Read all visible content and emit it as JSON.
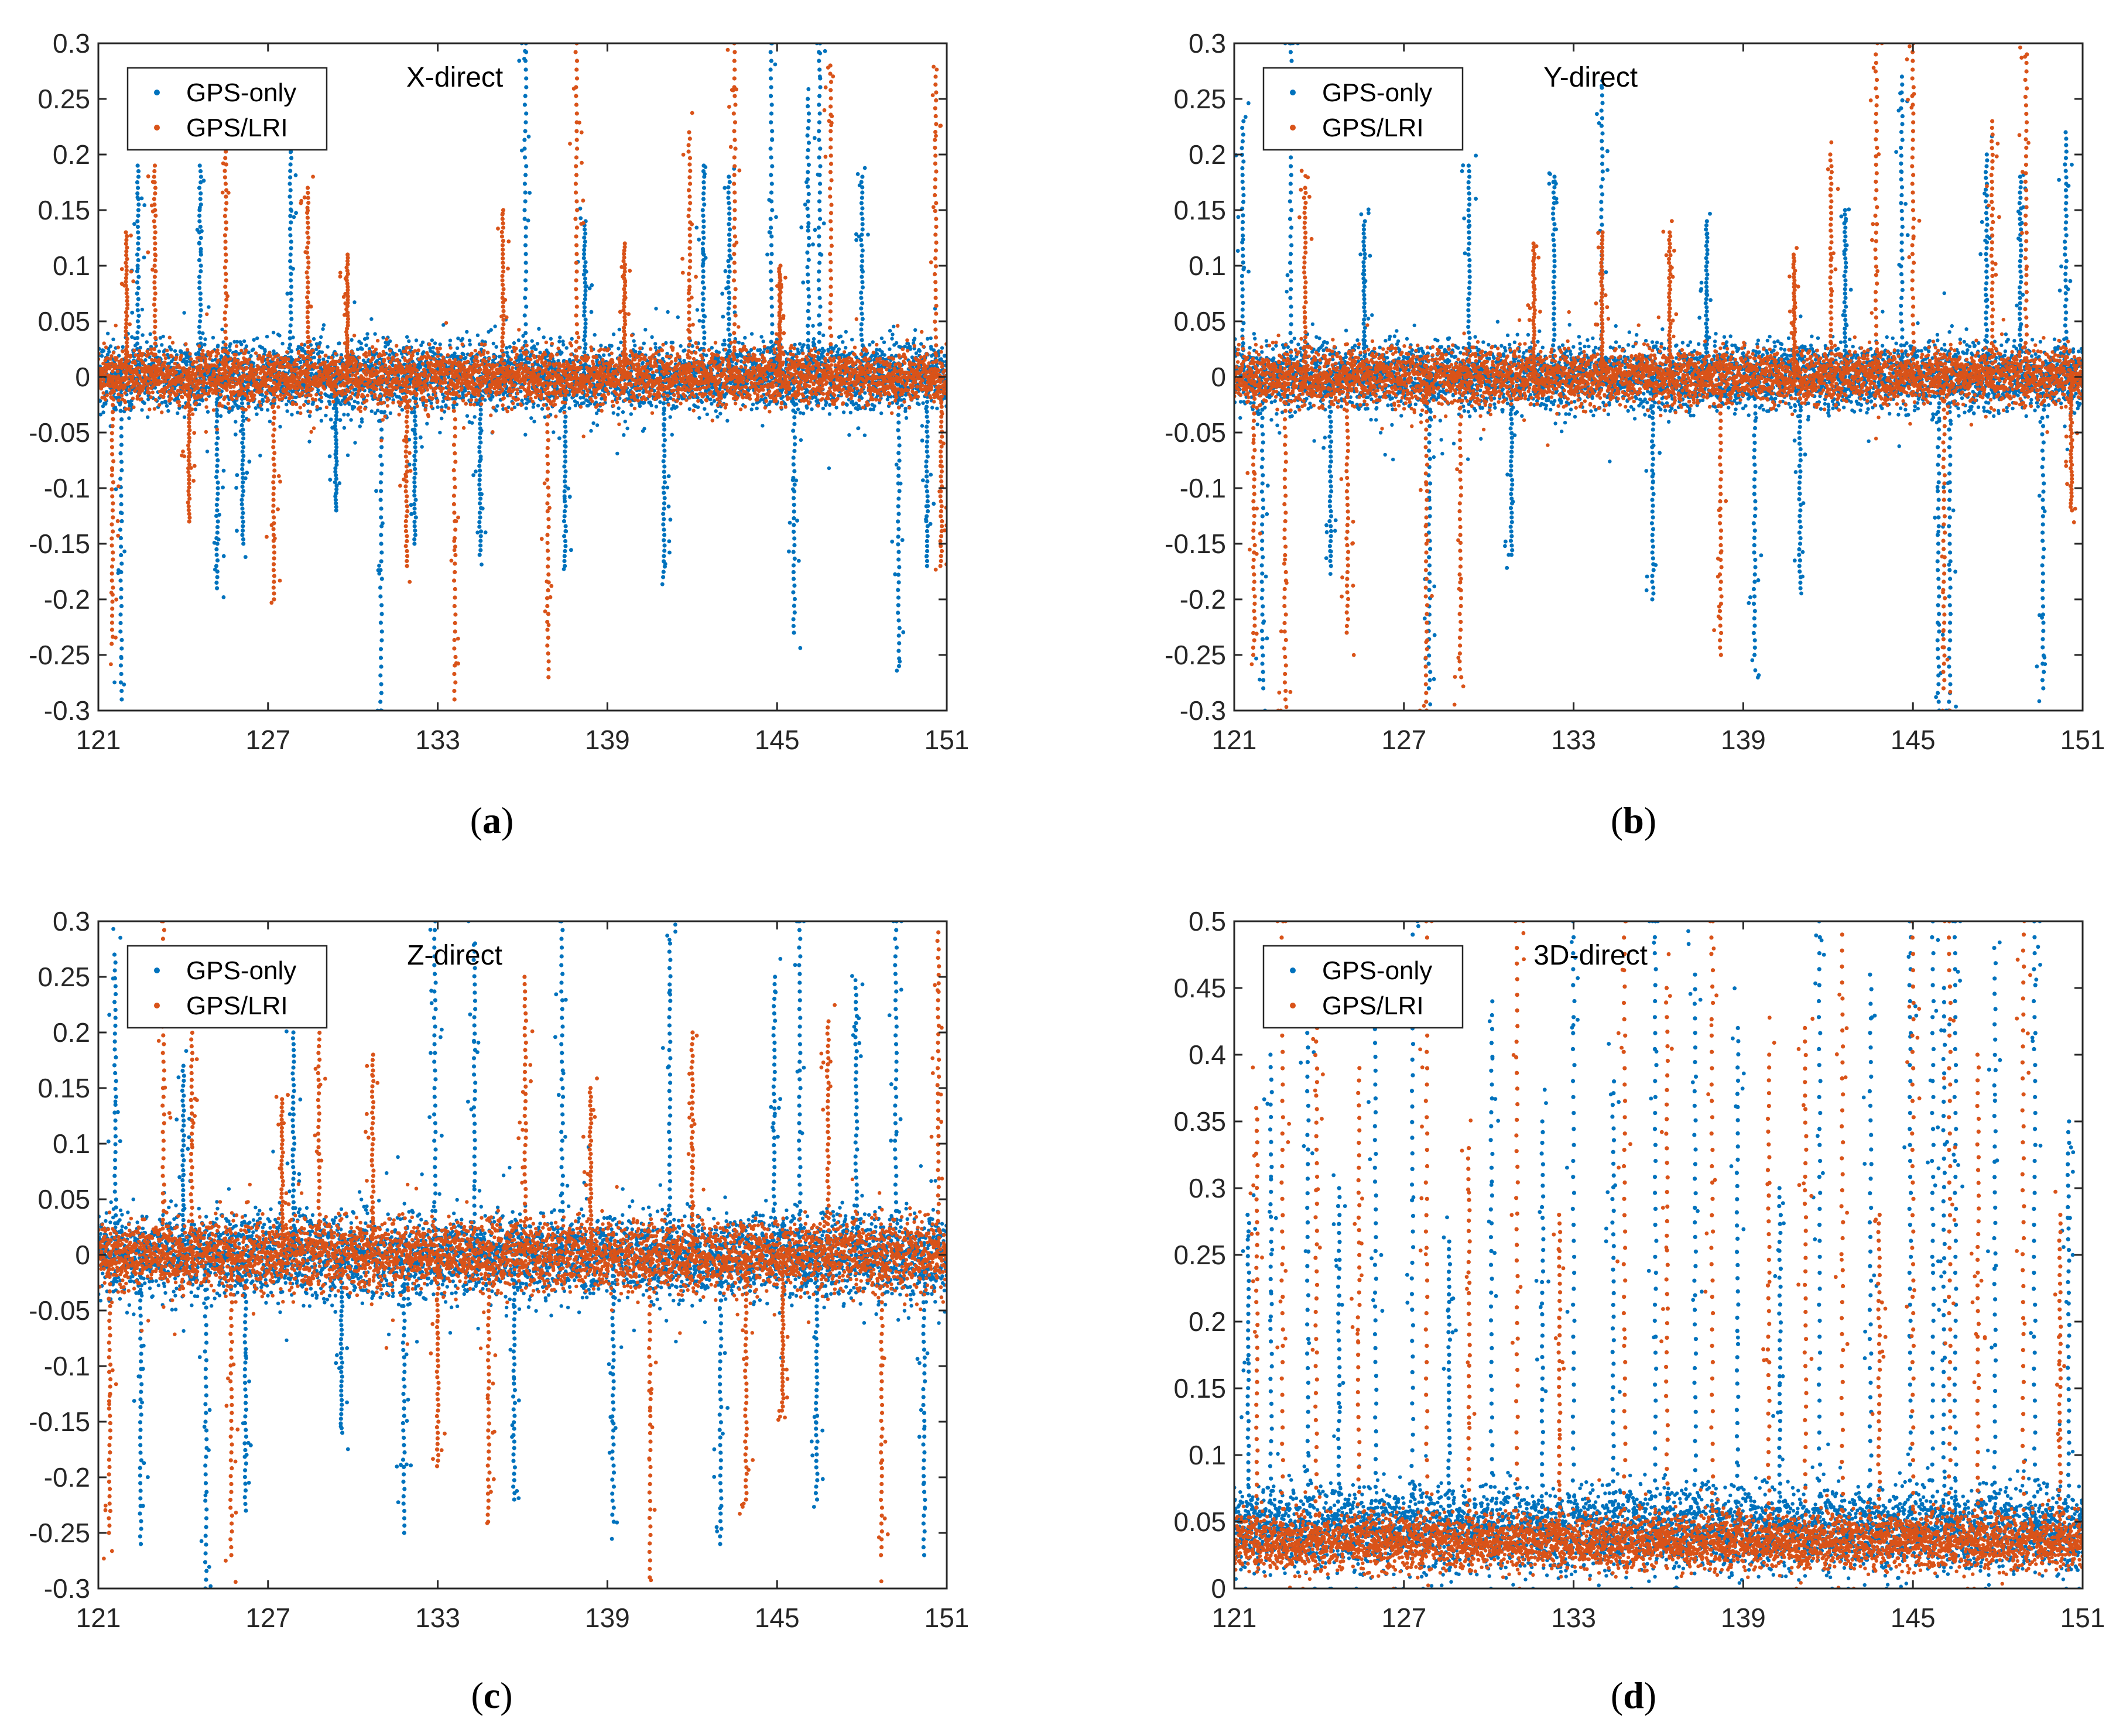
{
  "colors": {
    "gps_only": "#0072BD",
    "gps_lri": "#D95319"
  },
  "chart_data": [
    {
      "panel": "a",
      "caption_label": "a",
      "type": "scatter",
      "title": "X-direct",
      "xlabel": "",
      "ylabel": "",
      "xlim": [
        121,
        151
      ],
      "ylim": [
        -0.3,
        0.3
      ],
      "xticks": [
        121,
        127,
        133,
        139,
        145,
        151
      ],
      "xtick_labels": [
        "121",
        "127",
        "133",
        "139",
        "145",
        "151"
      ],
      "yticks": [
        -0.3,
        -0.25,
        -0.2,
        -0.15,
        -0.1,
        -0.05,
        0,
        0.05,
        0.1,
        0.15,
        0.2,
        0.25,
        0.3
      ],
      "ytick_labels": [
        "-0.3",
        "-0.25",
        "-0.2",
        "-0.15",
        "-0.1",
        "-0.05",
        "0",
        "0.05",
        "0.1",
        "0.15",
        "0.2",
        "0.25",
        "0.3"
      ],
      "legend": {
        "placement": "top-left",
        "entries": [
          "GPS-only",
          "GPS/LRI"
        ]
      },
      "series": [
        {
          "name": "GPS-only",
          "center": 0,
          "band": 0.045,
          "spikes": [
            [
              121.8,
              -0.29
            ],
            [
              122.4,
              0.19
            ],
            [
              124.6,
              0.19
            ],
            [
              125.2,
              -0.19
            ],
            [
              126.1,
              -0.15
            ],
            [
              127.8,
              0.22
            ],
            [
              129.4,
              -0.12
            ],
            [
              131.0,
              -0.3
            ],
            [
              132.2,
              -0.15
            ],
            [
              134.5,
              -0.16
            ],
            [
              136.1,
              0.3
            ],
            [
              137.5,
              -0.17
            ],
            [
              138.2,
              0.14
            ],
            [
              141.0,
              -0.18
            ],
            [
              142.4,
              0.19
            ],
            [
              143.3,
              0.18
            ],
            [
              144.8,
              0.3
            ],
            [
              145.6,
              -0.23
            ],
            [
              146.1,
              0.25
            ],
            [
              146.5,
              0.3
            ],
            [
              148.0,
              0.18
            ],
            [
              149.3,
              -0.26
            ],
            [
              150.3,
              -0.17
            ]
          ]
        },
        {
          "name": "GPS/LRI",
          "center": 0,
          "band": 0.035,
          "spikes": [
            [
              121.5,
              -0.24
            ],
            [
              122.0,
              0.13
            ],
            [
              123.0,
              0.19
            ],
            [
              124.2,
              -0.13
            ],
            [
              125.5,
              0.22
            ],
            [
              127.2,
              -0.2
            ],
            [
              128.4,
              0.17
            ],
            [
              129.8,
              0.11
            ],
            [
              131.9,
              -0.17
            ],
            [
              133.6,
              -0.29
            ],
            [
              135.3,
              0.15
            ],
            [
              136.9,
              -0.27
            ],
            [
              137.9,
              0.3
            ],
            [
              139.6,
              0.12
            ],
            [
              141.9,
              0.22
            ],
            [
              143.5,
              0.3
            ],
            [
              145.1,
              0.1
            ],
            [
              146.9,
              0.28
            ],
            [
              150.6,
              0.27
            ],
            [
              150.8,
              -0.17
            ]
          ]
        }
      ]
    },
    {
      "panel": "b",
      "caption_label": "b",
      "type": "scatter",
      "title": "Y-direct",
      "xlabel": "",
      "ylabel": "",
      "xlim": [
        121,
        151
      ],
      "ylim": [
        -0.3,
        0.3
      ],
      "xticks": [
        121,
        127,
        133,
        139,
        145,
        151
      ],
      "xtick_labels": [
        "121",
        "127",
        "133",
        "139",
        "145",
        "151"
      ],
      "yticks": [
        -0.3,
        -0.25,
        -0.2,
        -0.15,
        -0.1,
        -0.05,
        0,
        0.05,
        0.1,
        0.15,
        0.2,
        0.25,
        0.3
      ],
      "ytick_labels": [
        "-0.3",
        "-0.25",
        "-0.2",
        "-0.15",
        "-0.1",
        "-0.05",
        "0",
        "0.05",
        "0.1",
        "0.15",
        "0.2",
        "0.25",
        "0.3"
      ],
      "legend": {
        "placement": "top-left",
        "entries": [
          "GPS-only",
          "GPS/LRI"
        ]
      },
      "series": [
        {
          "name": "GPS-only",
          "center": 0,
          "band": 0.045,
          "spikes": [
            [
              121.3,
              0.23
            ],
            [
              122.0,
              -0.28
            ],
            [
              123.0,
              0.3
            ],
            [
              124.4,
              -0.17
            ],
            [
              125.6,
              0.14
            ],
            [
              127.9,
              -0.28
            ],
            [
              129.3,
              0.19
            ],
            [
              130.8,
              -0.16
            ],
            [
              132.3,
              0.18
            ],
            [
              134.0,
              0.26
            ],
            [
              135.8,
              -0.2
            ],
            [
              137.7,
              0.14
            ],
            [
              139.4,
              -0.25
            ],
            [
              141.0,
              -0.19
            ],
            [
              142.6,
              0.15
            ],
            [
              144.6,
              0.27
            ],
            [
              145.9,
              -0.3
            ],
            [
              146.3,
              -0.3
            ],
            [
              147.6,
              0.2
            ],
            [
              148.8,
              0.18
            ],
            [
              149.6,
              -0.28
            ],
            [
              150.4,
              0.22
            ]
          ]
        },
        {
          "name": "GPS/LRI",
          "center": 0,
          "band": 0.035,
          "spikes": [
            [
              121.7,
              -0.25
            ],
            [
              122.8,
              -0.29
            ],
            [
              123.5,
              0.17
            ],
            [
              125.0,
              -0.23
            ],
            [
              127.8,
              -0.3
            ],
            [
              129.0,
              -0.27
            ],
            [
              131.6,
              0.12
            ],
            [
              134.0,
              0.13
            ],
            [
              136.4,
              0.13
            ],
            [
              138.2,
              -0.25
            ],
            [
              140.8,
              0.11
            ],
            [
              142.1,
              0.2
            ],
            [
              143.7,
              0.29
            ],
            [
              145.0,
              0.3
            ],
            [
              146.1,
              -0.28
            ],
            [
              147.8,
              0.23
            ],
            [
              149.0,
              0.29
            ],
            [
              150.6,
              -0.12
            ]
          ]
        }
      ]
    },
    {
      "panel": "c",
      "caption_label": "c",
      "type": "scatter",
      "title": "Z-direct",
      "xlabel": "",
      "ylabel": "",
      "xlim": [
        121,
        151
      ],
      "ylim": [
        -0.3,
        0.3
      ],
      "xticks": [
        121,
        127,
        133,
        139,
        145,
        151
      ],
      "xtick_labels": [
        "121",
        "127",
        "133",
        "139",
        "145",
        "151"
      ],
      "yticks": [
        -0.3,
        -0.25,
        -0.2,
        -0.15,
        -0.1,
        -0.05,
        0,
        0.05,
        0.1,
        0.15,
        0.2,
        0.25,
        0.3
      ],
      "ytick_labels": [
        "-0.3",
        "-0.25",
        "-0.2",
        "-0.15",
        "-0.1",
        "-0.05",
        "0",
        "0.05",
        "0.1",
        "0.15",
        "0.2",
        "0.25",
        "0.3"
      ],
      "legend": {
        "placement": "top-left",
        "entries": [
          "GPS-only",
          "GPS/LRI"
        ]
      },
      "series": [
        {
          "name": "GPS-only",
          "center": 0,
          "band": 0.055,
          "spikes": [
            [
              121.6,
              0.27
            ],
            [
              122.5,
              -0.26
            ],
            [
              124.0,
              0.17
            ],
            [
              124.8,
              -0.3
            ],
            [
              126.2,
              -0.23
            ],
            [
              127.9,
              0.2
            ],
            [
              129.6,
              -0.16
            ],
            [
              131.8,
              -0.25
            ],
            [
              132.9,
              0.3
            ],
            [
              134.3,
              0.28
            ],
            [
              135.7,
              -0.22
            ],
            [
              137.4,
              0.3
            ],
            [
              139.2,
              -0.24
            ],
            [
              141.2,
              0.28
            ],
            [
              143.0,
              -0.26
            ],
            [
              144.9,
              0.25
            ],
            [
              145.8,
              0.3
            ],
            [
              146.4,
              -0.22
            ],
            [
              147.8,
              0.24
            ],
            [
              149.2,
              0.3
            ],
            [
              150.2,
              -0.27
            ]
          ]
        },
        {
          "name": "GPS/LRI",
          "center": 0,
          "band": 0.045,
          "spikes": [
            [
              121.4,
              -0.25
            ],
            [
              123.3,
              0.3
            ],
            [
              124.3,
              0.23
            ],
            [
              125.7,
              -0.27
            ],
            [
              127.5,
              0.14
            ],
            [
              128.8,
              0.23
            ],
            [
              130.7,
              0.18
            ],
            [
              133.0,
              -0.19
            ],
            [
              134.8,
              -0.24
            ],
            [
              136.1,
              0.25
            ],
            [
              138.4,
              0.15
            ],
            [
              140.5,
              -0.29
            ],
            [
              142.0,
              0.2
            ],
            [
              143.9,
              -0.22
            ],
            [
              145.2,
              -0.14
            ],
            [
              146.8,
              0.21
            ],
            [
              148.7,
              -0.27
            ],
            [
              150.7,
              0.29
            ]
          ]
        }
      ]
    },
    {
      "panel": "d",
      "caption_label": "d",
      "type": "scatter",
      "title": "3D-direct",
      "xlabel": "",
      "ylabel": "",
      "xlim": [
        121,
        151
      ],
      "ylim": [
        0,
        0.5
      ],
      "xticks": [
        121,
        127,
        133,
        139,
        145,
        151
      ],
      "xtick_labels": [
        "121",
        "127",
        "133",
        "139",
        "145",
        "151"
      ],
      "yticks": [
        0,
        0.05,
        0.1,
        0.15,
        0.2,
        0.25,
        0.3,
        0.35,
        0.4,
        0.45,
        0.5
      ],
      "ytick_labels": [
        "0",
        "0.05",
        "0.1",
        "0.15",
        "0.2",
        "0.25",
        "0.3",
        "0.35",
        "0.4",
        "0.45",
        "0.5"
      ],
      "legend": {
        "placement": "top-left",
        "entries": [
          "GPS-only",
          "GPS/LRI"
        ]
      },
      "series": [
        {
          "name": "GPS-only",
          "center": 0.045,
          "band": 0.045,
          "spikes": [
            [
              121.5,
              0.28
            ],
            [
              122.3,
              0.4
            ],
            [
              123.6,
              0.46
            ],
            [
              124.7,
              0.3
            ],
            [
              126.0,
              0.44
            ],
            [
              127.3,
              0.49
            ],
            [
              128.6,
              0.26
            ],
            [
              130.1,
              0.44
            ],
            [
              131.9,
              0.35
            ],
            [
              133.0,
              0.5
            ],
            [
              134.4,
              0.38
            ],
            [
              135.9,
              0.5
            ],
            [
              137.3,
              0.46
            ],
            [
              138.8,
              0.42
            ],
            [
              140.3,
              0.3
            ],
            [
              141.7,
              0.5
            ],
            [
              143.5,
              0.46
            ],
            [
              144.9,
              0.5
            ],
            [
              145.7,
              0.5
            ],
            [
              146.1,
              0.45
            ],
            [
              146.5,
              0.5
            ],
            [
              147.9,
              0.48
            ],
            [
              149.3,
              0.5
            ],
            [
              150.5,
              0.35
            ]
          ]
        },
        {
          "name": "GPS/LRI",
          "center": 0.035,
          "band": 0.03,
          "spikes": [
            [
              121.8,
              0.36
            ],
            [
              122.7,
              0.5
            ],
            [
              123.9,
              0.42
            ],
            [
              125.4,
              0.39
            ],
            [
              127.8,
              0.5
            ],
            [
              129.3,
              0.33
            ],
            [
              131.0,
              0.48
            ],
            [
              132.5,
              0.28
            ],
            [
              134.8,
              0.5
            ],
            [
              136.3,
              0.45
            ],
            [
              137.9,
              0.5
            ],
            [
              139.9,
              0.4
            ],
            [
              141.2,
              0.42
            ],
            [
              142.5,
              0.49
            ],
            [
              143.8,
              0.28
            ],
            [
              145.0,
              0.5
            ],
            [
              146.3,
              0.5
            ],
            [
              147.3,
              0.4
            ],
            [
              148.9,
              0.49
            ],
            [
              150.2,
              0.28
            ]
          ]
        }
      ]
    }
  ]
}
